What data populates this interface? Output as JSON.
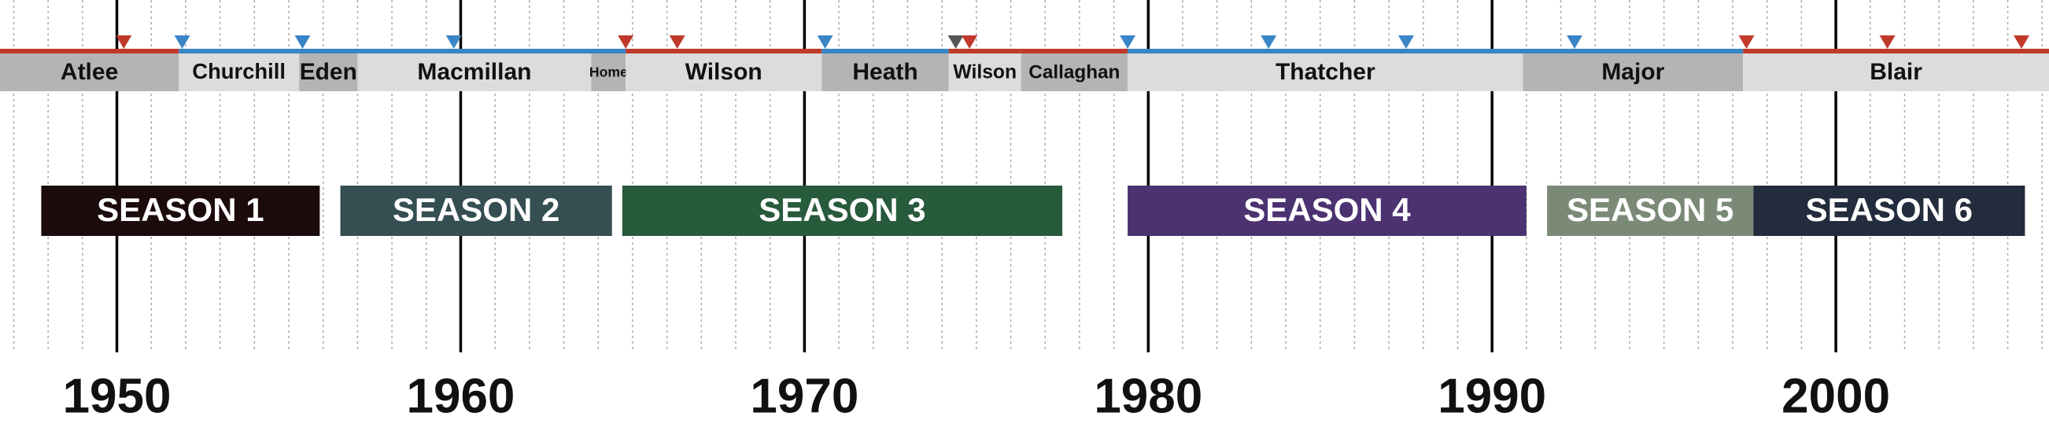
{
  "chart_data": {
    "type": "timeline",
    "xlim": [
      1946.6,
      2006.2
    ],
    "xticks": [
      1950,
      1960,
      1970,
      1980,
      1990,
      2000
    ],
    "minor_grid": true,
    "prime_ministers": [
      {
        "name": "Atlee",
        "start": 1945.6,
        "end": 1951.8,
        "color": "#b4b4b4",
        "line_color": "#c0392b"
      },
      {
        "name": "Churchill",
        "start": 1951.8,
        "end": 1955.3,
        "color": "#dcdcdd",
        "line_color": "#3a85c6"
      },
      {
        "name": "Eden",
        "start": 1955.3,
        "end": 1957.0,
        "color": "#b4b4b4",
        "line_color": "#3a85c6"
      },
      {
        "name": "Macmillan",
        "start": 1957.0,
        "end": 1963.8,
        "color": "#dcdcdd",
        "line_color": "#3a85c6"
      },
      {
        "name": "Home",
        "start": 1963.8,
        "end": 1964.8,
        "color": "#b4b4b4",
        "line_color": "#3a85c6"
      },
      {
        "name": "Wilson",
        "start": 1964.8,
        "end": 1970.5,
        "color": "#dcdcdd",
        "line_color": "#c0392b"
      },
      {
        "name": "Heath",
        "start": 1970.5,
        "end": 1974.2,
        "color": "#b4b4b4",
        "line_color": "#3a85c6"
      },
      {
        "name": "Wilson",
        "start": 1974.2,
        "end": 1976.3,
        "color": "#dcdcdd",
        "line_color": "#c0392b"
      },
      {
        "name": "Callaghan",
        "start": 1976.3,
        "end": 1979.4,
        "color": "#b4b4b4",
        "line_color": "#c0392b"
      },
      {
        "name": "Thatcher",
        "start": 1979.4,
        "end": 1990.9,
        "color": "#dcdcdd",
        "line_color": "#3a85c6"
      },
      {
        "name": "Major",
        "start": 1990.9,
        "end": 1997.3,
        "color": "#b4b4b4",
        "line_color": "#3a85c6"
      },
      {
        "name": "Blair",
        "start": 1997.3,
        "end": 2007.0,
        "color": "#dcdcdd",
        "line_color": "#c0392b"
      }
    ],
    "elections": [
      {
        "x": 1950.2,
        "color": "#c0392b"
      },
      {
        "x": 1951.9,
        "color": "#3a85c6"
      },
      {
        "x": 1955.4,
        "color": "#3a85c6"
      },
      {
        "x": 1959.8,
        "color": "#3a85c6"
      },
      {
        "x": 1964.8,
        "color": "#c0392b"
      },
      {
        "x": 1966.3,
        "color": "#c0392b"
      },
      {
        "x": 1970.6,
        "color": "#3a85c6"
      },
      {
        "x": 1974.4,
        "color": "#555555"
      },
      {
        "x": 1974.8,
        "color": "#c0392b"
      },
      {
        "x": 1979.4,
        "color": "#3a85c6"
      },
      {
        "x": 1983.5,
        "color": "#3a85c6"
      },
      {
        "x": 1987.5,
        "color": "#3a85c6"
      },
      {
        "x": 1992.4,
        "color": "#3a85c6"
      },
      {
        "x": 1997.4,
        "color": "#c0392b"
      },
      {
        "x": 2001.5,
        "color": "#c0392b"
      },
      {
        "x": 2005.4,
        "color": "#c0392b"
      }
    ],
    "seasons": [
      {
        "name": "SEASON 1",
        "start": 1947.8,
        "end": 1955.9,
        "color": "#1c0b0c"
      },
      {
        "name": "SEASON 2",
        "start": 1956.5,
        "end": 1964.4,
        "color": "#344e52"
      },
      {
        "name": "SEASON 3",
        "start": 1964.7,
        "end": 1977.5,
        "color": "#285a3c"
      },
      {
        "name": "SEASON 4",
        "start": 1979.4,
        "end": 1991.0,
        "color": "#4c3270"
      },
      {
        "name": "SEASON 5",
        "start": 1991.6,
        "end": 1997.6,
        "color": "#7b8a76"
      },
      {
        "name": "SEASON 6",
        "start": 1997.6,
        "end": 2005.5,
        "color": "#222c3c"
      }
    ]
  }
}
